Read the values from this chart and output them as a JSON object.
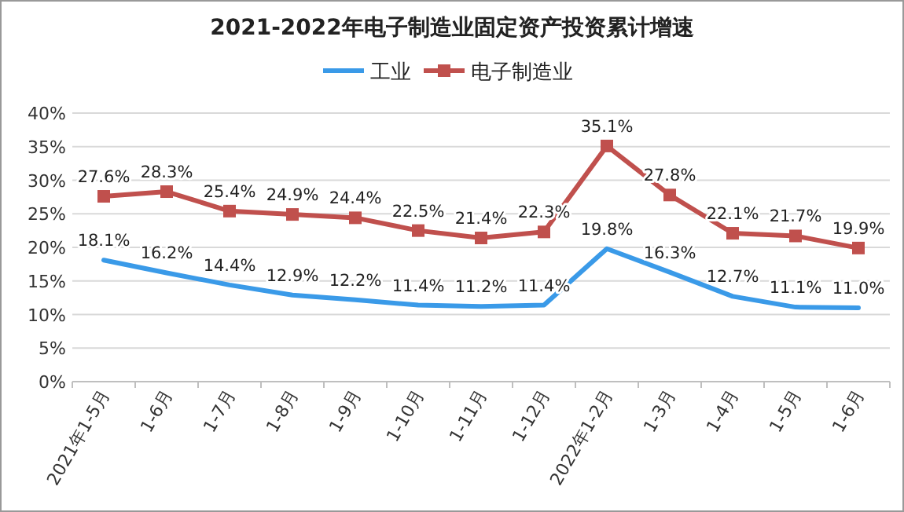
{
  "chart_data": {
    "type": "line",
    "title": "2021-2022年电子制造业固定资产投资累计增速",
    "categories": [
      "2021年1-5月",
      "1-6月",
      "1-7月",
      "1-8月",
      "1-9月",
      "1-10月",
      "1-11月",
      "1-12月",
      "2022年1-2月",
      "1-3月",
      "1-4月",
      "1-5月",
      "1-6月"
    ],
    "series": [
      {
        "name": "工业",
        "color": "#3a9ae8",
        "marker": "none",
        "values": [
          18.1,
          16.2,
          14.4,
          12.9,
          12.2,
          11.4,
          11.2,
          11.4,
          19.8,
          16.3,
          12.7,
          11.1,
          11.0
        ],
        "value_labels": [
          "18.1%",
          "16.2%",
          "14.4%",
          "12.9%",
          "12.2%",
          "11.4%",
          "11.2%",
          "11.4%",
          "19.8%",
          "16.3%",
          "12.7%",
          "11.1%",
          "11.0%"
        ]
      },
      {
        "name": "电子制造业",
        "color": "#c0504d",
        "marker": "square",
        "values": [
          27.6,
          28.3,
          25.4,
          24.9,
          24.4,
          22.5,
          21.4,
          22.3,
          35.1,
          27.8,
          22.1,
          21.7,
          19.9
        ],
        "value_labels": [
          "27.6%",
          "28.3%",
          "25.4%",
          "24.9%",
          "24.4%",
          "22.5%",
          "21.4%",
          "22.3%",
          "35.1%",
          "27.8%",
          "22.1%",
          "21.7%",
          "19.9%"
        ]
      }
    ],
    "ylim": [
      0,
      40
    ],
    "yticks": [
      {
        "value": 0,
        "label": "0%"
      },
      {
        "value": 5,
        "label": "5%"
      },
      {
        "value": 10,
        "label": "10%"
      },
      {
        "value": 15,
        "label": "15%"
      },
      {
        "value": 20,
        "label": "20%"
      },
      {
        "value": 25,
        "label": "25%"
      },
      {
        "value": 30,
        "label": "30%"
      },
      {
        "value": 35,
        "label": "35%"
      },
      {
        "value": 40,
        "label": "40%"
      }
    ],
    "grid": "y",
    "legend": "top",
    "line_style": "solid"
  }
}
